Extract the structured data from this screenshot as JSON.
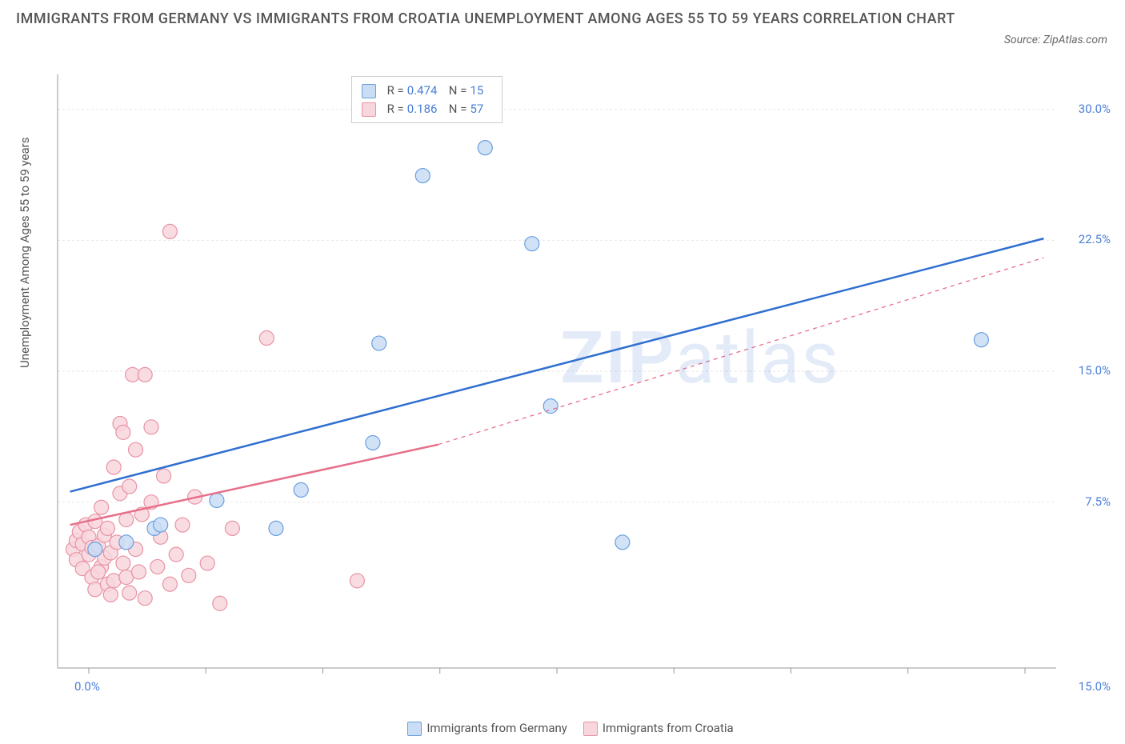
{
  "title": "IMMIGRANTS FROM GERMANY VS IMMIGRANTS FROM CROATIA UNEMPLOYMENT AMONG AGES 55 TO 59 YEARS CORRELATION CHART",
  "source_label": "Source: ZipAtlas.com",
  "y_axis_label": "Unemployment Among Ages 55 to 59 years",
  "watermark_bold": "ZIP",
  "watermark_light": "atlas",
  "chart": {
    "type": "scatter-with-regression",
    "background_color": "#ffffff",
    "grid_color": "#e6e6e6",
    "axis_line_color": "#999999",
    "tick_color": "#999999",
    "plot": {
      "x_min": -0.5,
      "x_max": 15.5,
      "y_min": -2.0,
      "y_max": 32.0
    },
    "x_ticks": [
      0.0,
      1.875,
      3.75,
      5.625,
      7.5,
      9.375,
      11.25,
      13.125,
      15.0
    ],
    "x_tick_labels": {
      "0": "0.0%",
      "15": "15.0%"
    },
    "y_gridlines": [
      7.5,
      15.0,
      22.5,
      30.0
    ],
    "y_tick_labels": {
      "7.5": "7.5%",
      "15": "15.0%",
      "22.5": "22.5%",
      "30": "30.0%"
    },
    "series": [
      {
        "name": "Immigrants from Germany",
        "key": "germany",
        "point_fill": "#c9ddf5",
        "point_stroke": "#6a9fe0",
        "line_color": "#2f6fd0",
        "line_width": 2.5,
        "line_dash": "none",
        "marker_radius": 9,
        "R": "0.474",
        "N": "15",
        "regression": {
          "x1": -0.3,
          "y1": 8.1,
          "x2": 15.3,
          "y2": 22.6
        },
        "points": [
          [
            0.1,
            4.8
          ],
          [
            0.6,
            5.2
          ],
          [
            1.05,
            6.0
          ],
          [
            1.15,
            6.2
          ],
          [
            2.05,
            7.6
          ],
          [
            3.0,
            6.0
          ],
          [
            3.4,
            8.2
          ],
          [
            4.55,
            10.9
          ],
          [
            4.65,
            16.6
          ],
          [
            5.35,
            26.2
          ],
          [
            6.35,
            27.8
          ],
          [
            7.1,
            22.3
          ],
          [
            7.4,
            13.0
          ],
          [
            8.55,
            5.2
          ],
          [
            14.3,
            16.8
          ]
        ]
      },
      {
        "name": "Immigrants from Croatia",
        "key": "croatia",
        "point_fill": "#f8d6dd",
        "point_stroke": "#e893a4",
        "line_color": "#e66f8a",
        "line_width": 2.5,
        "line_dash": "4 4",
        "marker_radius": 9,
        "R": "0.186",
        "N": "57",
        "regression_solid": {
          "x1": -0.3,
          "y1": 6.2,
          "x2": 5.6,
          "y2": 10.8
        },
        "regression_dashed": {
          "x1": 5.6,
          "y1": 10.8,
          "x2": 15.3,
          "y2": 21.5
        },
        "points": [
          [
            -0.25,
            4.8
          ],
          [
            -0.2,
            5.3
          ],
          [
            -0.2,
            4.2
          ],
          [
            -0.15,
            5.8
          ],
          [
            -0.1,
            3.7
          ],
          [
            -0.1,
            5.1
          ],
          [
            -0.05,
            6.2
          ],
          [
            0.0,
            4.5
          ],
          [
            0.0,
            5.5
          ],
          [
            0.05,
            3.2
          ],
          [
            0.05,
            4.9
          ],
          [
            0.1,
            6.4
          ],
          [
            0.1,
            2.5
          ],
          [
            0.15,
            5.0
          ],
          [
            0.2,
            3.8
          ],
          [
            0.2,
            7.2
          ],
          [
            0.25,
            4.3
          ],
          [
            0.25,
            5.6
          ],
          [
            0.3,
            2.8
          ],
          [
            0.3,
            6.0
          ],
          [
            0.35,
            4.6
          ],
          [
            0.4,
            9.5
          ],
          [
            0.4,
            3.0
          ],
          [
            0.45,
            5.2
          ],
          [
            0.5,
            8.0
          ],
          [
            0.5,
            12.0
          ],
          [
            0.55,
            4.0
          ],
          [
            0.55,
            11.5
          ],
          [
            0.6,
            3.2
          ],
          [
            0.6,
            6.5
          ],
          [
            0.65,
            2.3
          ],
          [
            0.65,
            8.4
          ],
          [
            0.7,
            14.8
          ],
          [
            0.75,
            4.8
          ],
          [
            0.75,
            10.5
          ],
          [
            0.8,
            3.5
          ],
          [
            0.85,
            6.8
          ],
          [
            0.9,
            14.8
          ],
          [
            0.9,
            2.0
          ],
          [
            1.0,
            7.5
          ],
          [
            1.0,
            11.8
          ],
          [
            1.1,
            3.8
          ],
          [
            1.15,
            5.5
          ],
          [
            1.2,
            9.0
          ],
          [
            1.3,
            2.8
          ],
          [
            1.3,
            23.0
          ],
          [
            1.4,
            4.5
          ],
          [
            1.5,
            6.2
          ],
          [
            1.6,
            3.3
          ],
          [
            1.7,
            7.8
          ],
          [
            1.9,
            4.0
          ],
          [
            2.1,
            1.7
          ],
          [
            2.3,
            6.0
          ],
          [
            2.85,
            16.9
          ],
          [
            4.3,
            3.0
          ],
          [
            0.15,
            3.5
          ],
          [
            0.35,
            2.2
          ]
        ]
      }
    ]
  },
  "bottom_legend": [
    {
      "label": "Immigrants from Germany",
      "fill": "#c9ddf5",
      "stroke": "#6a9fe0"
    },
    {
      "label": "Immigrants from Croatia",
      "fill": "#f8d6dd",
      "stroke": "#e893a4"
    }
  ],
  "top_legend": {
    "rows": [
      {
        "fill": "#c9ddf5",
        "stroke": "#6a9fe0",
        "R": "0.474",
        "N": "15"
      },
      {
        "fill": "#f8d6dd",
        "stroke": "#e893a4",
        "R": "0.186",
        "N": "57"
      }
    ],
    "r_label": "R =",
    "n_label": "N ="
  }
}
